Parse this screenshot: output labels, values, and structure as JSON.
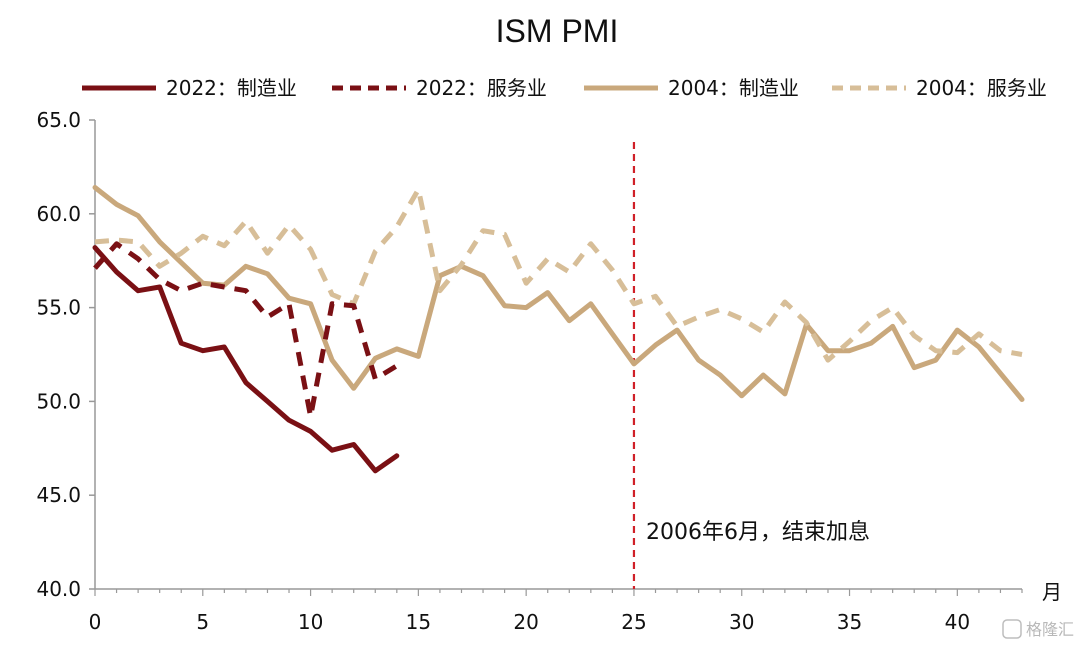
{
  "chart_data": {
    "type": "line",
    "title": "ISM PMI",
    "xlabel": "月",
    "ylabel": "",
    "xlim": [
      0,
      43
    ],
    "ylim": [
      40.0,
      65.0
    ],
    "xticks": [
      0,
      5,
      10,
      15,
      20,
      25,
      30,
      35,
      40
    ],
    "yticks": [
      "40.0",
      "45.0",
      "50.0",
      "55.0",
      "60.0",
      "65.0"
    ],
    "legend_position": "top",
    "grid": false,
    "series": [
      {
        "name": "2022：制造业",
        "color": "#7a1014",
        "style": "solid",
        "x": [
          0,
          1,
          2,
          3,
          4,
          5,
          6,
          7,
          8,
          9,
          10,
          11,
          12,
          13,
          14
        ],
        "values": [
          58.2,
          56.9,
          55.9,
          56.1,
          53.1,
          52.7,
          52.9,
          51.0,
          50.0,
          49.0,
          48.4,
          47.4,
          47.7,
          46.3,
          47.1
        ]
      },
      {
        "name": "2022：服务业",
        "color": "#7a1014",
        "style": "dashed",
        "x": [
          0,
          1,
          2,
          3,
          4,
          5,
          6,
          7,
          8,
          9,
          10,
          11,
          12,
          13,
          14
        ],
        "values": [
          57.1,
          58.4,
          57.6,
          56.5,
          55.9,
          56.3,
          56.1,
          55.9,
          54.5,
          55.2,
          49.2,
          55.2,
          55.1,
          51.2,
          51.9
        ]
      },
      {
        "name": "2004：制造业",
        "color": "#c9a87c",
        "style": "solid",
        "x": [
          0,
          1,
          2,
          3,
          4,
          5,
          6,
          7,
          8,
          9,
          10,
          11,
          12,
          13,
          14,
          15,
          16,
          17,
          18,
          19,
          20,
          21,
          22,
          23,
          24,
          25,
          26,
          27,
          28,
          29,
          30,
          31,
          32,
          33,
          34,
          35,
          36,
          37,
          38,
          39,
          40,
          41,
          42,
          43
        ],
        "values": [
          61.4,
          60.5,
          59.9,
          58.5,
          57.4,
          56.3,
          56.2,
          57.2,
          56.8,
          55.5,
          55.2,
          52.2,
          50.7,
          52.3,
          52.8,
          52.4,
          56.7,
          57.2,
          56.7,
          55.1,
          55.0,
          55.8,
          54.3,
          55.2,
          53.6,
          52.0,
          53.0,
          53.8,
          52.2,
          51.4,
          50.3,
          51.4,
          50.4,
          54.1,
          52.7,
          52.7,
          53.1,
          54.0,
          51.8,
          52.2,
          53.8,
          52.9,
          51.5,
          50.1
        ]
      },
      {
        "name": "2004：服务业",
        "color": "#d7be98",
        "style": "dashed",
        "x": [
          0,
          1,
          2,
          3,
          4,
          5,
          6,
          7,
          8,
          9,
          10,
          11,
          12,
          13,
          14,
          15,
          16,
          17,
          18,
          19,
          20,
          21,
          22,
          23,
          24,
          25,
          26,
          27,
          28,
          29,
          30,
          31,
          32,
          33,
          34,
          35,
          36,
          37,
          38,
          39,
          40,
          41,
          42,
          43
        ],
        "values": [
          58.5,
          58.6,
          58.5,
          57.2,
          57.9,
          58.8,
          58.3,
          59.6,
          57.9,
          59.4,
          58.1,
          55.7,
          55.2,
          58.0,
          59.3,
          61.3,
          55.9,
          57.3,
          59.1,
          58.9,
          56.3,
          57.6,
          56.9,
          58.4,
          57.0,
          55.2,
          55.6,
          54.0,
          54.5,
          54.9,
          54.4,
          53.7,
          55.3,
          54.2,
          52.2,
          53.2,
          54.3,
          55.0,
          53.5,
          52.7,
          52.6,
          53.6,
          52.7,
          52.5
        ]
      }
    ],
    "annotations": [
      {
        "x": 25,
        "color": "#d02028",
        "style": "dashed",
        "text": "2006年6月，结束加息"
      }
    ]
  },
  "watermark": "格隆汇"
}
